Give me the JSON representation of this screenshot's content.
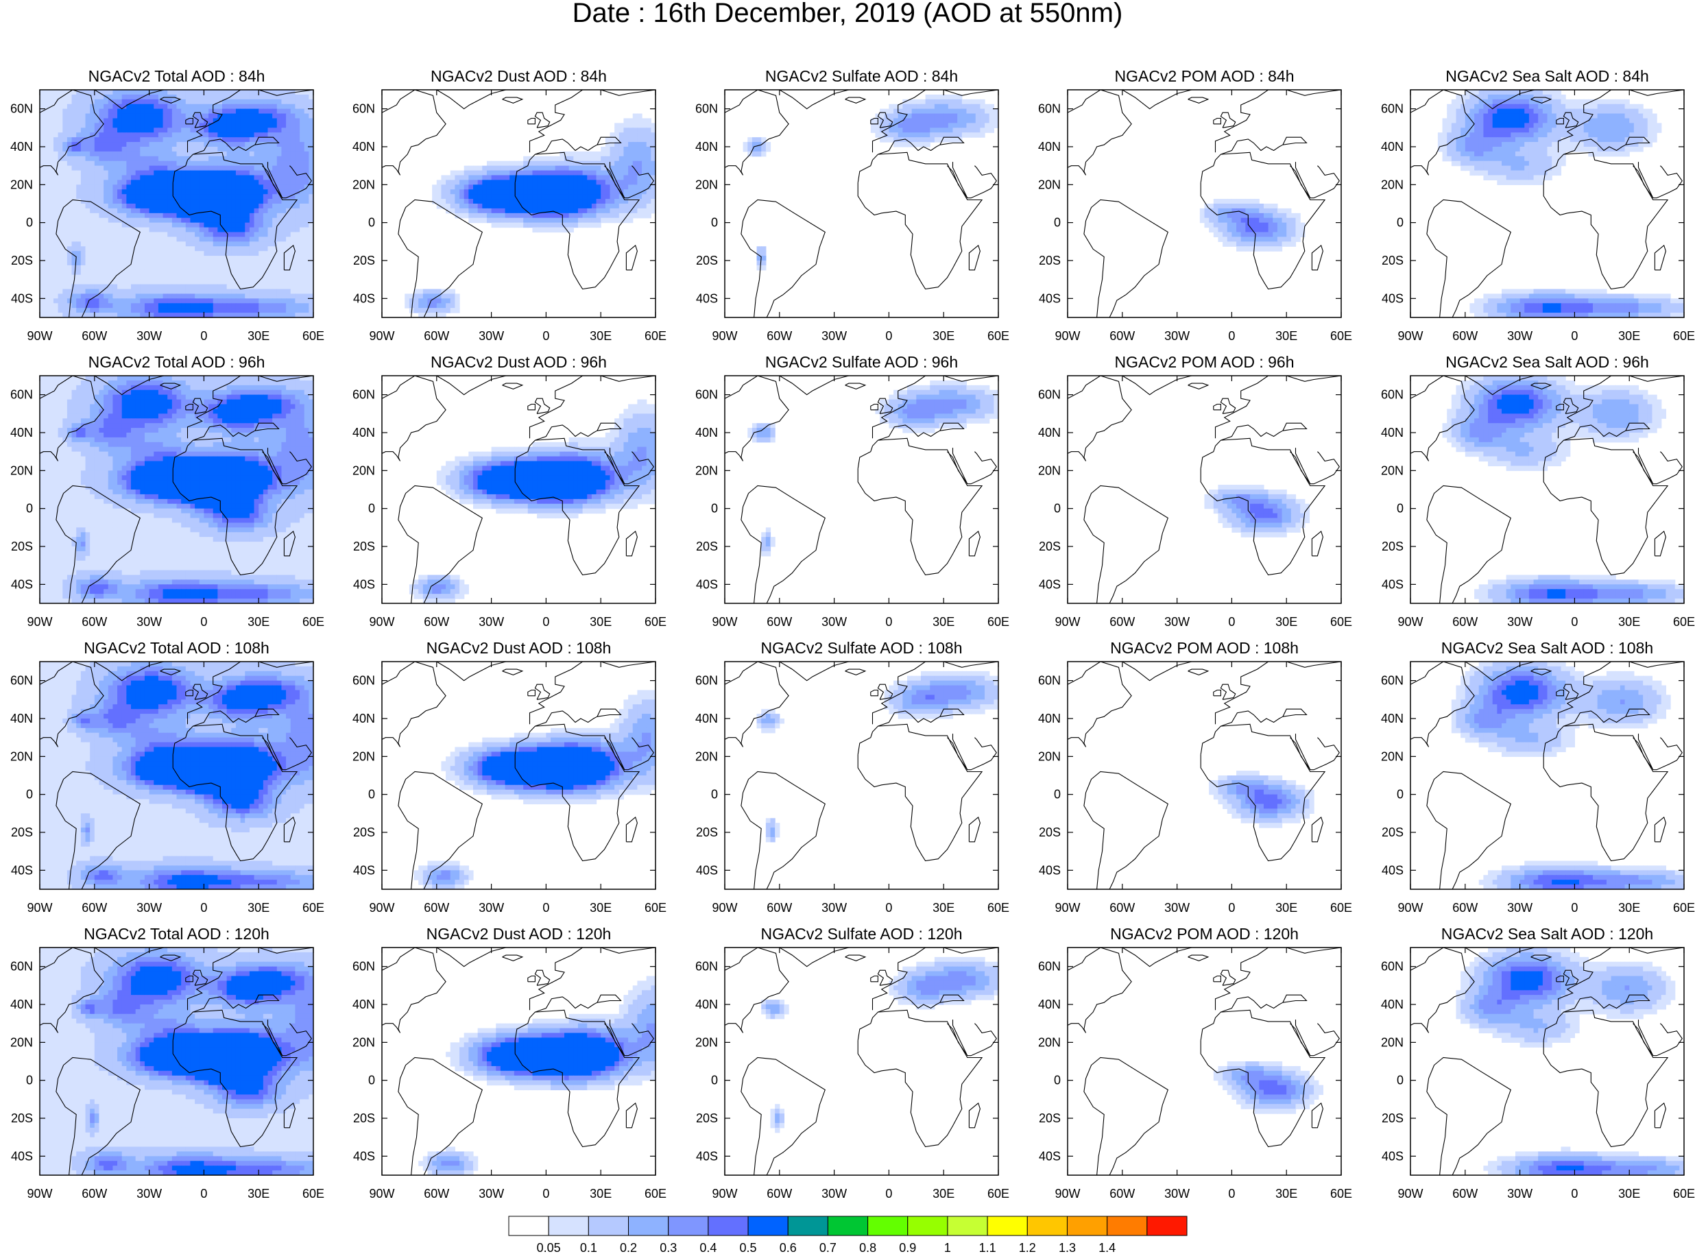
{
  "figure": {
    "title": "Date : 16th December, 2019 (AOD at 550nm)"
  },
  "axes": {
    "lon_ticks": [
      "90W",
      "60W",
      "30W",
      "0",
      "30E",
      "60E"
    ],
    "lat_ticks": [
      "60N",
      "40N",
      "20N",
      "0",
      "20S",
      "40S"
    ],
    "lon_range_deg": [
      -90,
      60
    ],
    "lat_range_deg": [
      -50,
      70
    ]
  },
  "panels": [
    {
      "title": "NGACv2 Total AOD : 84h",
      "species": "total",
      "hour": 84
    },
    {
      "title": "NGACv2 Dust AOD : 84h",
      "species": "dust",
      "hour": 84
    },
    {
      "title": "NGACv2 Sulfate AOD : 84h",
      "species": "sulfate",
      "hour": 84
    },
    {
      "title": "NGACv2 POM AOD : 84h",
      "species": "pom",
      "hour": 84
    },
    {
      "title": "NGACv2 Sea Salt AOD : 84h",
      "species": "seasalt",
      "hour": 84
    },
    {
      "title": "NGACv2 Total AOD : 96h",
      "species": "total",
      "hour": 96
    },
    {
      "title": "NGACv2 Dust AOD : 96h",
      "species": "dust",
      "hour": 96
    },
    {
      "title": "NGACv2 Sulfate AOD : 96h",
      "species": "sulfate",
      "hour": 96
    },
    {
      "title": "NGACv2 POM AOD : 96h",
      "species": "pom",
      "hour": 96
    },
    {
      "title": "NGACv2 Sea Salt AOD : 96h",
      "species": "seasalt",
      "hour": 96
    },
    {
      "title": "NGACv2 Total AOD : 108h",
      "species": "total",
      "hour": 108
    },
    {
      "title": "NGACv2 Dust AOD : 108h",
      "species": "dust",
      "hour": 108
    },
    {
      "title": "NGACv2 Sulfate AOD : 108h",
      "species": "sulfate",
      "hour": 108
    },
    {
      "title": "NGACv2 POM AOD : 108h",
      "species": "pom",
      "hour": 108
    },
    {
      "title": "NGACv2 Sea Salt AOD : 108h",
      "species": "seasalt",
      "hour": 108
    },
    {
      "title": "NGACv2 Total AOD : 120h",
      "species": "total",
      "hour": 120
    },
    {
      "title": "NGACv2 Dust AOD : 120h",
      "species": "dust",
      "hour": 120
    },
    {
      "title": "NGACv2 Sulfate AOD : 120h",
      "species": "sulfate",
      "hour": 120
    },
    {
      "title": "NGACv2 POM AOD : 120h",
      "species": "pom",
      "hour": 120
    },
    {
      "title": "NGACv2 Sea Salt  AOD : 120h",
      "species": "seasalt",
      "hour": 120
    }
  ],
  "colorbar": {
    "labels": [
      "0.05",
      "0.1",
      "0.2",
      "0.3",
      "0.4",
      "0.5",
      "0.6",
      "0.7",
      "0.8",
      "0.9",
      "1",
      "1.1",
      "1.2",
      "1.3",
      "1.4"
    ],
    "colors": [
      "#ffffff",
      "#d6e2ff",
      "#b5c9ff",
      "#8eb2ff",
      "#7f96ff",
      "#6370ff",
      "#0063ff",
      "#009696",
      "#00c633",
      "#63ff00",
      "#96ff00",
      "#c6ff33",
      "#ffff00",
      "#ffc600",
      "#ffa000",
      "#ff7c00",
      "#ff1900"
    ]
  }
}
